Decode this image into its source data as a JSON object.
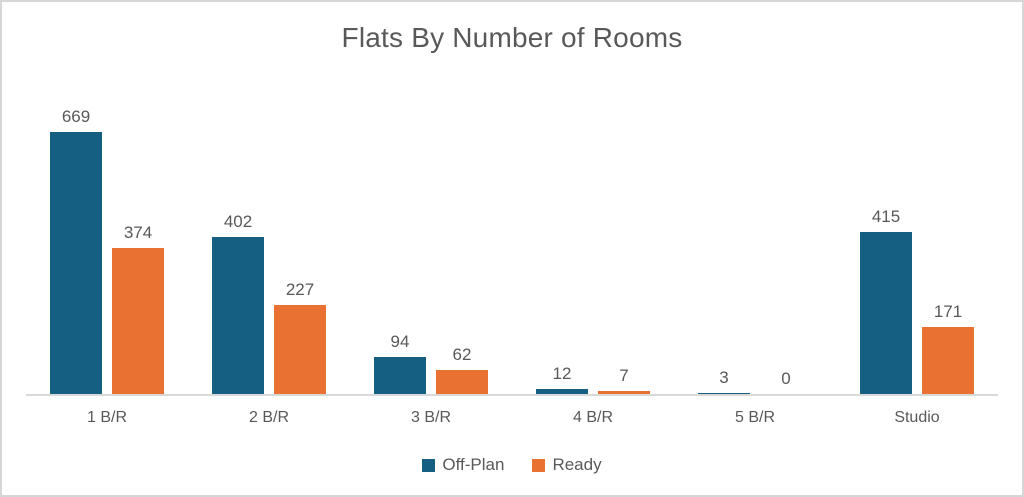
{
  "chart_data": {
    "type": "bar",
    "title": "Flats By Number of Rooms",
    "categories": [
      "1 B/R",
      "2 B/R",
      "3 B/R",
      "4 B/R",
      "5 B/R",
      "Studio"
    ],
    "series": [
      {
        "name": "Off-Plan",
        "color": "#156082",
        "values": [
          669,
          402,
          94,
          12,
          3,
          415
        ]
      },
      {
        "name": "Ready",
        "color": "#E97132",
        "values": [
          374,
          227,
          62,
          7,
          0,
          171
        ]
      }
    ],
    "ylim": [
      0,
      700
    ],
    "grid": false,
    "legend_position": "bottom",
    "data_labels": true,
    "axis_line_color": "#d9d9d9",
    "text_color": "#595959"
  }
}
